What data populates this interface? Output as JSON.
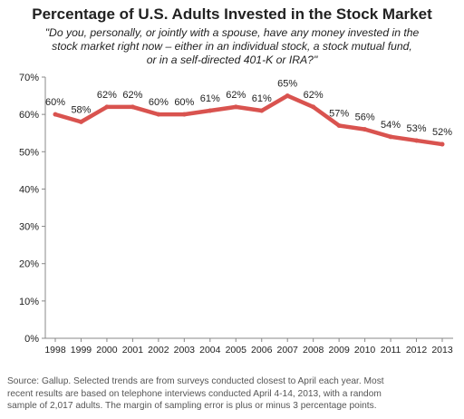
{
  "chart_data": {
    "type": "line",
    "title": "Percentage of U.S. Adults Invested in the Stock Market",
    "subtitle_lines": [
      "\"Do you, personally, or jointly with a spouse, have any money invested in the",
      "stock market right now – either in an individual stock, a stock mutual fund,",
      "or in a self-directed 401-K or IRA?\""
    ],
    "xlabel": "",
    "ylabel": "",
    "x": [
      "1998",
      "1999",
      "2000",
      "2001",
      "2002",
      "2003",
      "2004",
      "2005",
      "2006",
      "2007",
      "2008",
      "2009",
      "2010",
      "2011",
      "2012",
      "2013"
    ],
    "series": [
      {
        "values": [
          60,
          58,
          62,
          62,
          60,
          60,
          61,
          62,
          61,
          65,
          62,
          57,
          56,
          54,
          53,
          52
        ]
      }
    ],
    "data_labels": [
      "60%",
      "58%",
      "62%",
      "62%",
      "60%",
      "60%",
      "61%",
      "62%",
      "61%",
      "65%",
      "62%",
      "57%",
      "56%",
      "54%",
      "53%",
      "52%"
    ],
    "ylim": [
      0,
      70
    ],
    "yticks": [
      0,
      10,
      20,
      30,
      40,
      50,
      60,
      70
    ],
    "ytick_labels": [
      "0%",
      "10%",
      "20%",
      "30%",
      "40%",
      "50%",
      "60%",
      "70%"
    ],
    "grid": false,
    "line_color": "#d9534f",
    "axis_color": "#888888"
  },
  "source_lines": [
    "Source: Gallup. Selected trends are from surveys conducted closest to April each year. Most",
    "recent results are based on telephone interviews conducted April 4-14, 2013, with a random",
    "sample of 2,017 adults. The margin of sampling error is plus or minus 3 percentage points."
  ]
}
